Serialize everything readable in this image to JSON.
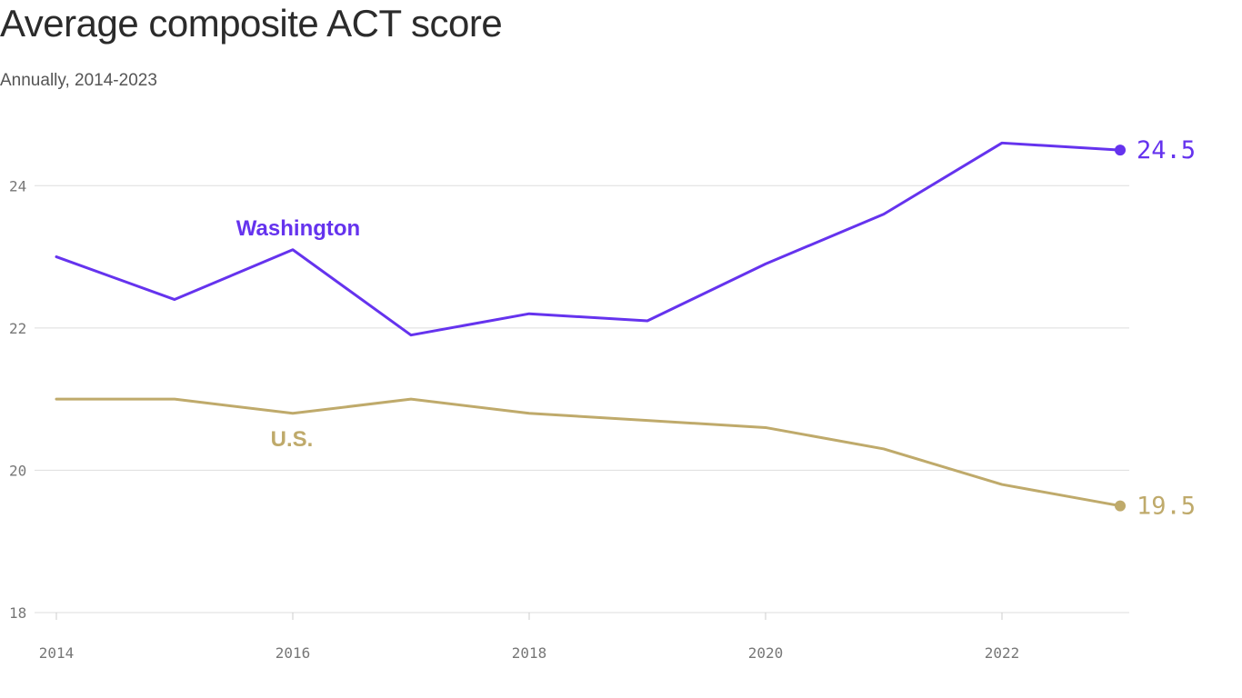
{
  "title": "Average composite ACT score",
  "subtitle": "Annually, 2014-2023",
  "chart_data": {
    "type": "line",
    "title": "Average composite ACT score",
    "subtitle": "Annually, 2014-2023",
    "xlabel": "",
    "ylabel": "",
    "x": [
      2014,
      2015,
      2016,
      2017,
      2018,
      2019,
      2020,
      2021,
      2022,
      2023
    ],
    "xlim": [
      2014,
      2023
    ],
    "ylim": [
      18,
      25
    ],
    "x_ticks": [
      2014,
      2016,
      2018,
      2020,
      2022
    ],
    "y_ticks": [
      18,
      20,
      22,
      24
    ],
    "grid": "horizontal",
    "legend": "none (direct labels)",
    "series": [
      {
        "name": "Washington",
        "color": "#6533ee",
        "values": [
          23.0,
          22.4,
          23.1,
          21.9,
          22.2,
          22.1,
          22.9,
          23.6,
          24.6,
          24.5
        ],
        "end_label": "24.5"
      },
      {
        "name": "U.S.",
        "color": "#bfaa6b",
        "values": [
          21.0,
          21.0,
          20.8,
          21.0,
          20.8,
          20.7,
          20.6,
          20.3,
          19.8,
          19.5
        ],
        "end_label": "19.5"
      }
    ]
  }
}
